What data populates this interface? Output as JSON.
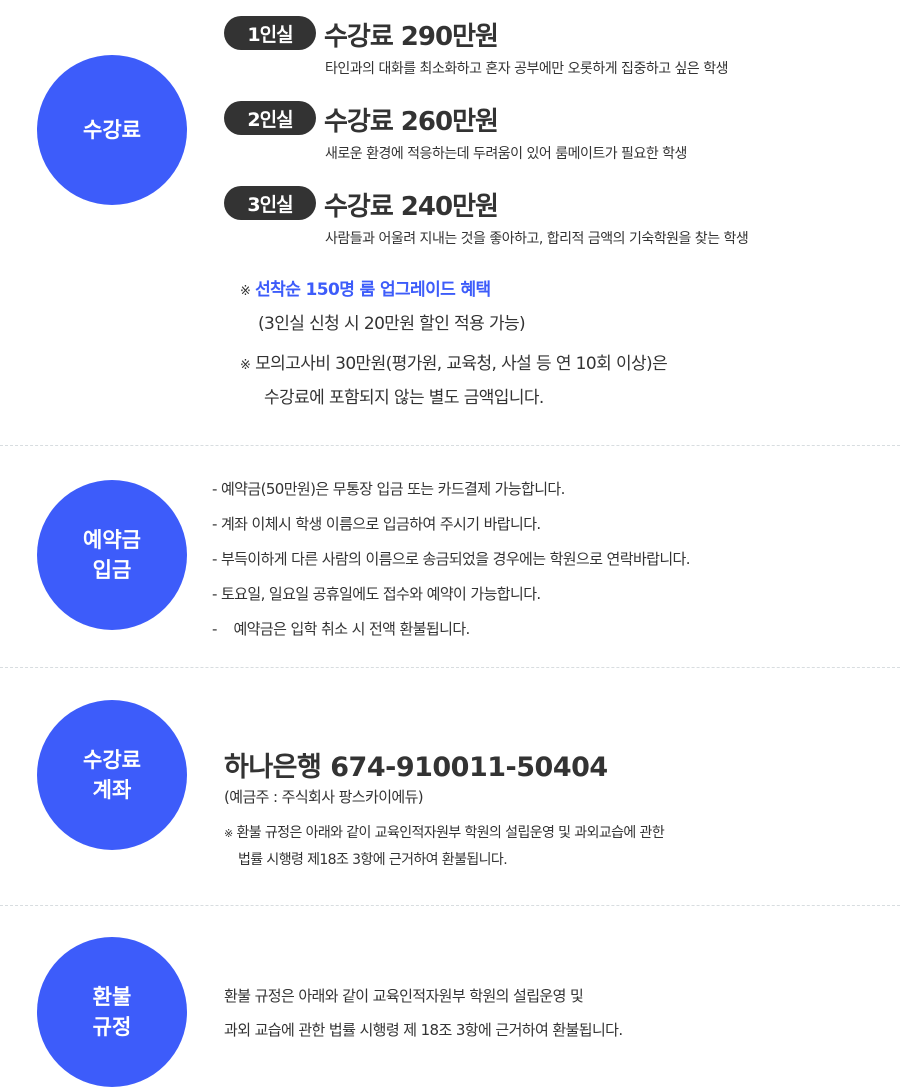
{
  "colors": {
    "accent": "#3d5cfa",
    "pill": "#333333",
    "highlight": "#3d5cfa"
  },
  "tuition": {
    "circle": "수강료",
    "rooms": [
      {
        "badge": "1인실",
        "price": "수강료 290만원",
        "desc": "타인과의 대화를 최소화하고 혼자 공부에만 오롯하게 집중하고 싶은 학생"
      },
      {
        "badge": "2인실",
        "price": "수강료 260만원",
        "desc": "새로운 환경에 적응하는데 두려움이 있어 룸메이트가 필요한 학생"
      },
      {
        "badge": "3인실",
        "price": "수강료 240만원",
        "desc": "사람들과 어울려 지내는 것을 좋아하고, 합리적 금액의 기숙학원을 찾는 학생"
      }
    ],
    "mark": "※",
    "benefit_title": "선착순 150명 룸 업그레이드 혜택",
    "benefit_sub": "(3인실 신청 시 20만원 할인 적용 가능)",
    "exam_line1": "모의고사비 30만원(평가원, 교육청, 사설 등 연 10회 이상)은",
    "exam_line2": "수강료에 포함되지 않는 별도 금액입니다."
  },
  "deposit": {
    "circle": "예약금\n입금",
    "items": [
      "- 예약금(50만원)은 무통장 입금 또는 카드결제 가능합니다.",
      "- 계좌 이체시 학생 이름으로 입금하여 주시기 바랍니다.",
      "- 부득이하게 다른 사람의 이름으로 송금되었을 경우에는 학원으로 연락바랍니다.",
      "- 토요일, 일요일 공휴일에도 접수와 예약이 가능합니다.",
      "-    예약금은 입학 취소 시 전액 환불됩니다."
    ]
  },
  "account": {
    "circle": "수강료\n계좌",
    "bank": "하나은행 674-910011-50404",
    "holder": "(예금주 : 주식회사 팡스카이에듀)",
    "mark": "※",
    "note1": "환불 규정은 아래와 같이 교육인적자원부 학원의 설립운영 및 과외교습에 관한",
    "note2": "법률 시행령 제18조 3항에 근거하여 환불됩니다."
  },
  "refund": {
    "circle": "환불\n규정",
    "line1": "환불 규정은 아래와 같이 교육인적자원부 학원의 설립운영 및",
    "line2": "과외 교습에 관한 법률 시행령 제 18조 3항에 근거하여 환불됩니다."
  }
}
